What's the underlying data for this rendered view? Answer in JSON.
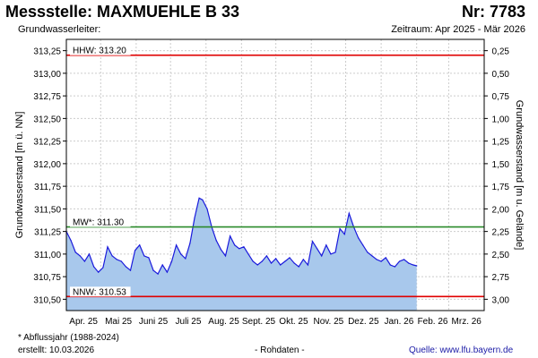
{
  "header": {
    "title": "Messstelle: MAXMUEHLE B 33",
    "number": "Nr: 7783",
    "aquifer_label": "Grundwasserleiter:",
    "period": "Zeitraum: Apr 2025 - Mär 2026"
  },
  "footer": {
    "footnote": "* Abflussjahr (1988-2024)",
    "created": "erstellt:  10.03.2026",
    "rawdata": "- Rohdaten -",
    "source": "Quelle: www.lfu.bayern.de"
  },
  "colors": {
    "line": "#1a1adc",
    "fill": "#a8c8ec",
    "hhw": "#e00000",
    "nnw": "#e00000",
    "mw": "#2a8a2a",
    "grid": "#cccccc"
  },
  "chart_data": {
    "type": "area",
    "ylabel_left": "Grundwasserstand [m ü. NN]",
    "ylabel_right": "Grundwasserstand [m u. Gelände]",
    "ylim": [
      310.375,
      313.375
    ],
    "y_ticks_left": [
      "313,25",
      "313,00",
      "312,75",
      "312,50",
      "312,25",
      "312,00",
      "311,75",
      "311,50",
      "311,25",
      "311,00",
      "310,75",
      "310,50"
    ],
    "y_ticks_right": [
      "0,25",
      "0,50",
      "0,75",
      "1,00",
      "1,25",
      "1,50",
      "1,75",
      "2,00",
      "2,25",
      "2,50",
      "2,75",
      "3,00"
    ],
    "x_ticks": [
      "Apr. 25",
      "Mai 25",
      "Juni 25",
      "Juli 25",
      "Aug. 25",
      "Sept. 25",
      "Okt. 25",
      "Nov. 25",
      "Dez. 25",
      "Jan. 26",
      "Feb. 26",
      "Mrz. 26"
    ],
    "reference_lines": [
      {
        "label": "HHW: 313.20",
        "value": 313.2,
        "color_key": "hhw"
      },
      {
        "label": "MW*: 311.30",
        "value": 311.3,
        "color_key": "mw"
      },
      {
        "label": "NNW: 310.53",
        "value": 310.53,
        "color_key": "nnw"
      }
    ],
    "series": [
      {
        "x": [
          "2025-04-01",
          "2025-04-05",
          "2025-04-09",
          "2025-04-13",
          "2025-04-17",
          "2025-04-21",
          "2025-04-25",
          "2025-04-29",
          "2025-05-03",
          "2025-05-07",
          "2025-05-11",
          "2025-05-15",
          "2025-05-19",
          "2025-05-23",
          "2025-05-27",
          "2025-05-31",
          "2025-06-04",
          "2025-06-08",
          "2025-06-12",
          "2025-06-16",
          "2025-06-20",
          "2025-06-24",
          "2025-06-28",
          "2025-07-02",
          "2025-07-06",
          "2025-07-10",
          "2025-07-14",
          "2025-07-18",
          "2025-07-22",
          "2025-07-26",
          "2025-07-29",
          "2025-08-02",
          "2025-08-06",
          "2025-08-10",
          "2025-08-14",
          "2025-08-18",
          "2025-08-22",
          "2025-08-26",
          "2025-08-30",
          "2025-09-03",
          "2025-09-07",
          "2025-09-11",
          "2025-09-15",
          "2025-09-19",
          "2025-09-23",
          "2025-09-27",
          "2025-10-01",
          "2025-10-05",
          "2025-10-09",
          "2025-10-13",
          "2025-10-17",
          "2025-10-21",
          "2025-10-25",
          "2025-10-29",
          "2025-11-02",
          "2025-11-06",
          "2025-11-10",
          "2025-11-14",
          "2025-11-18",
          "2025-11-22",
          "2025-11-26",
          "2025-11-30",
          "2025-12-04",
          "2025-12-08",
          "2025-12-12",
          "2025-12-16",
          "2025-12-20",
          "2025-12-24",
          "2025-12-28",
          "2026-01-01",
          "2026-01-05",
          "2026-01-09",
          "2026-01-13",
          "2026-01-17",
          "2026-01-21",
          "2026-01-25",
          "2026-01-29",
          "2026-02-01"
        ],
        "y": [
          311.25,
          311.15,
          311.02,
          310.98,
          310.92,
          311.0,
          310.86,
          310.8,
          310.85,
          311.08,
          310.98,
          310.94,
          310.92,
          310.86,
          310.82,
          311.04,
          311.1,
          310.98,
          310.96,
          310.82,
          310.78,
          310.88,
          310.8,
          310.92,
          311.1,
          311.0,
          310.95,
          311.12,
          311.4,
          311.62,
          311.6,
          311.5,
          311.3,
          311.15,
          311.05,
          310.98,
          311.2,
          311.1,
          311.06,
          311.08,
          311.0,
          310.92,
          310.88,
          310.92,
          310.98,
          310.9,
          310.95,
          310.88,
          310.92,
          310.96,
          310.9,
          310.86,
          310.94,
          310.88,
          311.14,
          311.06,
          310.98,
          311.1,
          311.0,
          311.02,
          311.28,
          311.22,
          311.45,
          311.3,
          311.18,
          311.1,
          311.02,
          310.98,
          310.94,
          310.92,
          310.96,
          310.88,
          310.86,
          310.92,
          310.94,
          310.9,
          310.88,
          310.87
        ]
      }
    ]
  }
}
